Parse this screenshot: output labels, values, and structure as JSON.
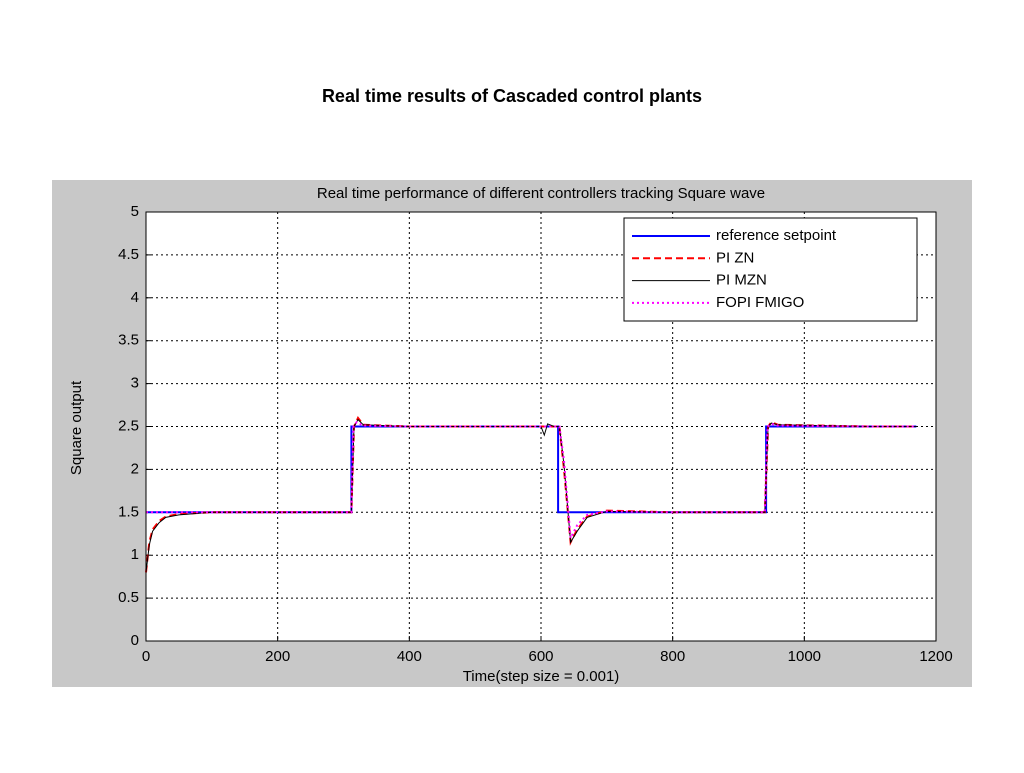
{
  "slide_title": "Real time results of Cascaded control plants",
  "chart_data": {
    "type": "line",
    "title": "Real time performance of different controllers tracking Square wave",
    "x_label": "Time(step size = 0.001)",
    "y_label": "Square output",
    "xlim": [
      0,
      1200
    ],
    "ylim": [
      0,
      5
    ],
    "xticks": [
      0,
      200,
      400,
      600,
      800,
      1000,
      1200
    ],
    "yticks": [
      0,
      0.5,
      1,
      1.5,
      2,
      2.5,
      3,
      3.5,
      4,
      4.5,
      5
    ],
    "grid": true,
    "legend": "upper right",
    "series": [
      {
        "name": "reference setpoint",
        "color": "#0000ff",
        "style": "solid",
        "x": [
          0,
          312,
          312,
          626,
          626,
          942,
          942,
          1170
        ],
        "values": [
          1.5,
          1.5,
          2.5,
          2.5,
          1.5,
          1.5,
          2.5,
          2.5
        ]
      },
      {
        "name": "PI ZN",
        "color": "#ff0000",
        "style": "dashed",
        "x": [
          0,
          5,
          10,
          20,
          30,
          50,
          100,
          200,
          312,
          316,
          322,
          330,
          400,
          620,
          628,
          635,
          645,
          655,
          670,
          700,
          800,
          940,
          945,
          950,
          960,
          1100,
          1170
        ],
        "values": [
          0.8,
          1.15,
          1.3,
          1.4,
          1.45,
          1.48,
          1.5,
          1.5,
          1.5,
          2.5,
          2.6,
          2.52,
          2.5,
          2.5,
          2.5,
          2.0,
          1.15,
          1.3,
          1.45,
          1.52,
          1.5,
          1.5,
          2.5,
          2.55,
          2.52,
          2.5,
          2.5
        ]
      },
      {
        "name": "PI MZN",
        "color": "#000000",
        "style": "solid",
        "x": [
          0,
          5,
          10,
          20,
          30,
          50,
          100,
          200,
          312,
          316,
          322,
          330,
          400,
          600,
          605,
          610,
          620,
          628,
          635,
          645,
          655,
          670,
          700,
          800,
          940,
          945,
          950,
          960,
          1100,
          1170
        ],
        "values": [
          0.8,
          1.12,
          1.28,
          1.38,
          1.44,
          1.47,
          1.5,
          1.5,
          1.5,
          2.5,
          2.58,
          2.52,
          2.5,
          2.5,
          2.4,
          2.53,
          2.5,
          2.5,
          2.05,
          1.15,
          1.28,
          1.44,
          1.51,
          1.5,
          1.5,
          2.5,
          2.54,
          2.52,
          2.5,
          2.5
        ]
      },
      {
        "name": "FOPI FMIGO",
        "color": "#ff00ff",
        "style": "dotted",
        "x": [
          0,
          5,
          10,
          20,
          30,
          50,
          100,
          200,
          312,
          315,
          320,
          330,
          400,
          620,
          628,
          635,
          645,
          655,
          670,
          700,
          800,
          940,
          944,
          950,
          960,
          1100,
          1170
        ],
        "values": [
          1.5,
          1.5,
          1.5,
          1.5,
          1.5,
          1.5,
          1.5,
          1.5,
          1.5,
          2.5,
          2.55,
          2.51,
          2.5,
          2.5,
          2.5,
          2.1,
          1.2,
          1.35,
          1.47,
          1.51,
          1.5,
          1.5,
          2.5,
          2.53,
          2.51,
          2.5,
          2.5
        ]
      }
    ]
  }
}
